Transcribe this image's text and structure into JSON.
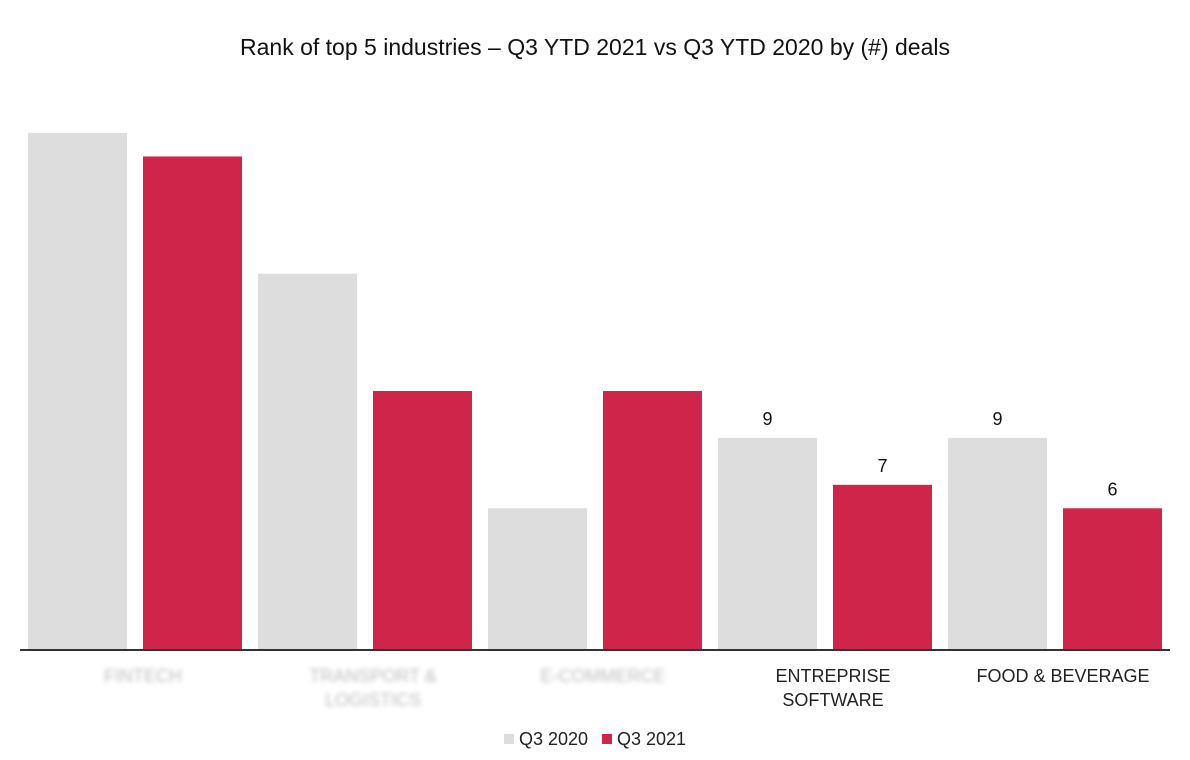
{
  "chart_data": {
    "type": "bar",
    "title": "Rank of top 5 industries – Q3 YTD 2021 vs Q3 YTD 2020 by (#) deals",
    "categories": [
      "FINTECH",
      "TRANSPORT & LOGISTICS",
      "E-COMMERCE",
      "ENTREPRISE SOFTWARE",
      "FOOD & BEVERAGE"
    ],
    "category_display": [
      "FINTECH",
      "TRANSPORT &\nLOGISTICS",
      "E-COMMERCE",
      "ENTREPRISE\nSOFTWARE",
      "FOOD & BEVERAGE"
    ],
    "category_blurred": [
      true,
      true,
      true,
      false,
      false
    ],
    "series": [
      {
        "name": "Q3 2020",
        "color": "#dcdddc",
        "values": [
          22,
          16,
          6,
          9,
          9
        ],
        "labels": [
          "",
          "",
          "",
          "9",
          "9"
        ]
      },
      {
        "name": "Q3 2021",
        "color": "#d0254a",
        "values": [
          21,
          11,
          11,
          7,
          6
        ],
        "labels": [
          "",
          "",
          "",
          "7",
          "6"
        ]
      }
    ],
    "ylim": [
      0,
      22
    ],
    "axis_color": "#333333",
    "grid": false,
    "legend_position": "bottom"
  }
}
